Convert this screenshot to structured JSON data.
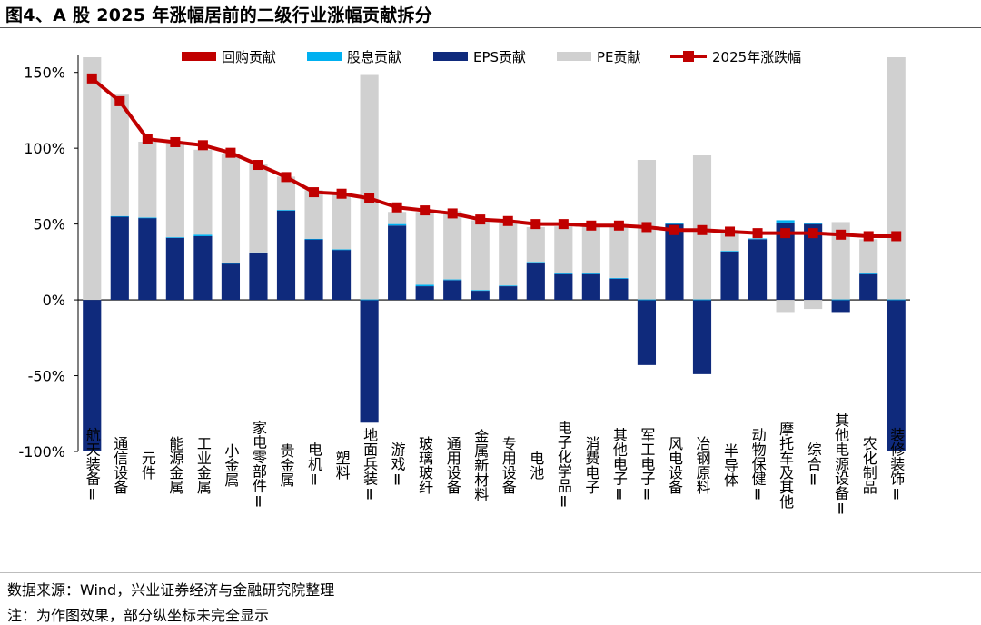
{
  "title": "图4、A 股 2025 年涨幅居前的二级行业涨幅贡献拆分",
  "source_note": "数据来源：Wind，兴业证券经济与金融研究院整理",
  "chart_note": "注：为作图效果，部分纵坐标未完全显示",
  "colors": {
    "buyback": "#c00000",
    "dividend": "#00b0f0",
    "eps": "#0f2a7c",
    "pe": "#d0d0d0",
    "change": "#c00000"
  },
  "chart_data": {
    "type": "bar",
    "stacked": true,
    "categories": [
      "航天装备Ⅱ",
      "通信设备",
      "元件",
      "能源金属",
      "工业金属",
      "小金属",
      "家电零部件Ⅱ",
      "贵金属",
      "电机Ⅱ",
      "塑料",
      "地面兵装Ⅱ",
      "游戏Ⅱ",
      "玻璃玻纤",
      "通用设备",
      "金属新材料",
      "专用设备",
      "电池",
      "电子化学品Ⅱ",
      "消费电子",
      "其他电子Ⅱ",
      "军工电子Ⅱ",
      "风电设备",
      "冶钢原料",
      "半导体",
      "动物保健Ⅱ",
      "摩托车及其他",
      "综合Ⅱ",
      "其他电源设备Ⅱ",
      "农化制品",
      "装修装饰Ⅱ"
    ],
    "ylim": [
      -100,
      160
    ],
    "yticks": [
      -100,
      -50,
      0,
      50,
      100,
      150
    ],
    "ytick_labels": [
      "-100%",
      "-50%",
      "0%",
      "50%",
      "100%",
      "150%"
    ],
    "series": [
      {
        "name": "回购贡献",
        "kind": "bar",
        "values": [
          0,
          0,
          0,
          0,
          0,
          0,
          0,
          0,
          0,
          0,
          0,
          0,
          0,
          0,
          0,
          0,
          0,
          0,
          0,
          0,
          0,
          0,
          0,
          0,
          0,
          0,
          0,
          0,
          0,
          0
        ]
      },
      {
        "name": "股息贡献",
        "kind": "bar",
        "values": [
          0,
          0.3,
          0.3,
          0.3,
          1,
          0.3,
          0.3,
          0.3,
          0.3,
          0.3,
          0.3,
          1,
          1,
          0.5,
          0.5,
          0.5,
          1,
          0.5,
          0.5,
          0.5,
          0.3,
          0.5,
          0.3,
          0.3,
          0.5,
          1.5,
          0.5,
          0.3,
          1,
          0.3
        ]
      },
      {
        "name": "EPS贡献",
        "kind": "bar",
        "values": [
          -100,
          55,
          54,
          41,
          42,
          24,
          31,
          59,
          40,
          33,
          -81,
          49,
          9,
          13,
          6,
          9,
          24,
          17,
          17,
          14,
          -43,
          50,
          -49,
          32,
          40,
          51,
          50,
          -8,
          17,
          -100
        ]
      },
      {
        "name": "PE贡献",
        "kind": "bar",
        "values": [
          160,
          80,
          50,
          62,
          56,
          72,
          58,
          22,
          32,
          37,
          148,
          8,
          48,
          45,
          46,
          41,
          23,
          31,
          32,
          35,
          92,
          0,
          95,
          12,
          0,
          -8,
          -6,
          51,
          22,
          160
        ]
      },
      {
        "name": "2025年涨跌幅",
        "kind": "line",
        "values": [
          146,
          131,
          106,
          104,
          102,
          97,
          89,
          81,
          71,
          70,
          67,
          61,
          59,
          57,
          53,
          52,
          50,
          50,
          49,
          49,
          48,
          46,
          46,
          45,
          44,
          44,
          44,
          43,
          42,
          42
        ]
      }
    ]
  }
}
